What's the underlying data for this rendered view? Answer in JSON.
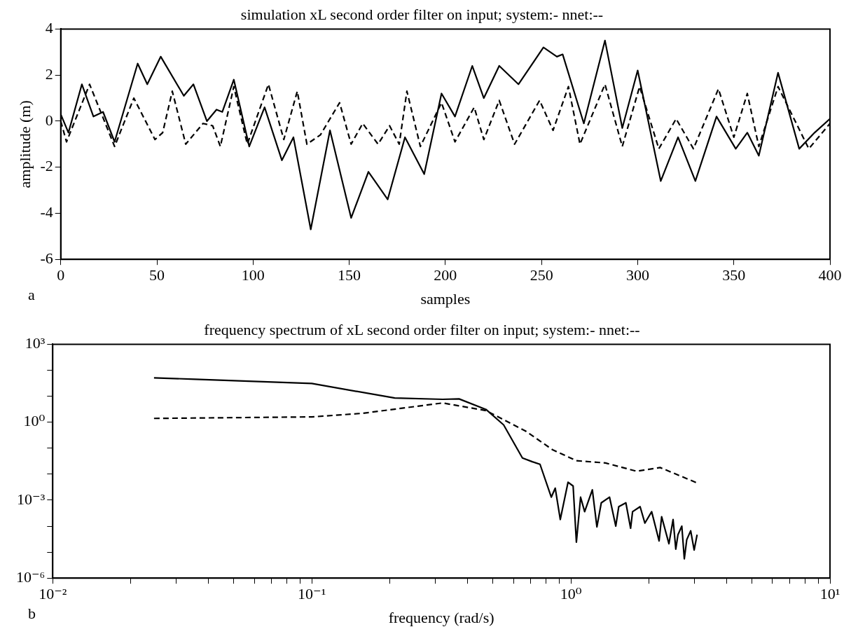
{
  "chart_data": [
    {
      "type": "line",
      "title": "simulation xL second order filter on input; system:- nnet:--",
      "xlabel": "samples",
      "ylabel": "amplitude (m)",
      "annotations": [
        "a"
      ],
      "xlim": [
        0,
        400
      ],
      "xticks": [
        0,
        50,
        100,
        150,
        200,
        250,
        300,
        350,
        400
      ],
      "ylim": [
        -6,
        4
      ],
      "yticks": [
        -6,
        -4,
        -2,
        0,
        2,
        4
      ],
      "grid": false,
      "legend": false,
      "marker": "none",
      "series": [
        {
          "color": "#000000",
          "line_style": "solid",
          "x": [
            0,
            4,
            11,
            17,
            22,
            28,
            40,
            45,
            52,
            64,
            69,
            76,
            81,
            84,
            90,
            98,
            106,
            115,
            121,
            130,
            140,
            151,
            160,
            170,
            179,
            189,
            198,
            205,
            214,
            220,
            228,
            238,
            251,
            258,
            261,
            272,
            283,
            292,
            300,
            312,
            321,
            330,
            341,
            351,
            357,
            363,
            373,
            384,
            392,
            400
          ],
          "values": [
            0.3,
            -0.5,
            1.6,
            0.2,
            0.4,
            -0.9,
            2.5,
            1.6,
            2.8,
            1.1,
            1.6,
            0.0,
            0.5,
            0.4,
            1.8,
            -1.1,
            0.6,
            -1.7,
            -0.7,
            -4.7,
            -0.4,
            -4.2,
            -2.2,
            -3.4,
            -0.7,
            -2.3,
            1.2,
            0.2,
            2.4,
            1.0,
            2.4,
            1.6,
            3.2,
            2.8,
            2.9,
            -0.1,
            3.5,
            -0.3,
            2.2,
            -2.6,
            -0.7,
            -2.6,
            0.2,
            -1.2,
            -0.5,
            -1.5,
            2.1,
            -1.2,
            -0.5,
            0.1
          ]
        },
        {
          "color": "#000000",
          "line_style": "dashed",
          "x": [
            0,
            3,
            15,
            28,
            38,
            49,
            53,
            58,
            65,
            74,
            79,
            83,
            90,
            97,
            108,
            116,
            123,
            128,
            135,
            145,
            151,
            157,
            165,
            171,
            176,
            180,
            187,
            198,
            205,
            215,
            220,
            228,
            236,
            249,
            256,
            264,
            270,
            283,
            292,
            301,
            311,
            320,
            329,
            342,
            350,
            357,
            363,
            373,
            389,
            400
          ],
          "values": [
            0.0,
            -0.9,
            1.6,
            -1.1,
            1.0,
            -0.8,
            -0.5,
            1.3,
            -1.0,
            -0.1,
            -0.2,
            -1.1,
            1.5,
            -1.0,
            1.6,
            -0.8,
            1.3,
            -1.0,
            -0.6,
            0.8,
            -1.0,
            -0.1,
            -1.0,
            -0.2,
            -1.0,
            1.3,
            -1.1,
            0.8,
            -0.9,
            0.6,
            -0.8,
            0.9,
            -1.0,
            0.9,
            -0.4,
            1.5,
            -1.0,
            1.6,
            -1.1,
            1.5,
            -1.2,
            0.1,
            -1.2,
            1.4,
            -0.7,
            1.2,
            -1.1,
            1.5,
            -1.2,
            -0.1
          ]
        }
      ]
    },
    {
      "type": "line",
      "title": "frequency spectrum of xL second order filter on input; system:- nnet:--",
      "xlabel": "frequency (rad/s)",
      "annotations": [
        "b"
      ],
      "log": "xy",
      "xlim": [
        0.01,
        10
      ],
      "xticks": [
        {
          "value": 0.01,
          "label": "10⁻²"
        },
        {
          "value": 0.02,
          "label": null
        },
        {
          "value": 0.03,
          "label": null
        },
        {
          "value": 0.04,
          "label": null
        },
        {
          "value": 0.05,
          "label": null
        },
        {
          "value": 0.06,
          "label": null
        },
        {
          "value": 0.07,
          "label": null
        },
        {
          "value": 0.08,
          "label": null
        },
        {
          "value": 0.09,
          "label": null
        },
        {
          "value": 0.1,
          "label": "10⁻¹"
        },
        {
          "value": 0.2,
          "label": null
        },
        {
          "value": 0.3,
          "label": null
        },
        {
          "value": 0.4,
          "label": null
        },
        {
          "value": 0.5,
          "label": null
        },
        {
          "value": 0.6,
          "label": null
        },
        {
          "value": 0.7,
          "label": null
        },
        {
          "value": 0.8,
          "label": null
        },
        {
          "value": 0.9,
          "label": null
        },
        {
          "value": 1,
          "label": "10⁰"
        },
        {
          "value": 2,
          "label": null
        },
        {
          "value": 3,
          "label": null
        },
        {
          "value": 4,
          "label": null
        },
        {
          "value": 5,
          "label": null
        },
        {
          "value": 6,
          "label": null
        },
        {
          "value": 7,
          "label": null
        },
        {
          "value": 8,
          "label": null
        },
        {
          "value": 9,
          "label": null
        },
        {
          "value": 10,
          "label": "10¹"
        }
      ],
      "ylim": [
        1e-06,
        1000
      ],
      "yticks": [
        {
          "value": 1e-06,
          "label": "10⁻⁶"
        },
        {
          "value": 1e-05,
          "label": null
        },
        {
          "value": 0.0001,
          "label": null
        },
        {
          "value": 0.001,
          "label": "10⁻³"
        },
        {
          "value": 0.01,
          "label": null
        },
        {
          "value": 0.1,
          "label": null
        },
        {
          "value": 1,
          "label": "10⁰"
        },
        {
          "value": 10,
          "label": null
        },
        {
          "value": 100,
          "label": null
        },
        {
          "value": 1000,
          "label": "10³"
        }
      ],
      "grid": false,
      "legend": false,
      "marker": "none",
      "series": [
        {
          "color": "#000000",
          "line_style": "solid",
          "x": [
            0.0246,
            0.0354,
            0.1,
            0.209,
            0.32,
            0.37,
            0.47,
            0.55,
            0.65,
            0.71,
            0.76,
            0.84,
            0.87,
            0.91,
            0.975,
            1.02,
            1.05,
            1.09,
            1.13,
            1.21,
            1.26,
            1.31,
            1.41,
            1.49,
            1.53,
            1.63,
            1.7,
            1.73,
            1.85,
            1.93,
            2.05,
            2.19,
            2.24,
            2.39,
            2.48,
            2.54,
            2.59,
            2.68,
            2.74,
            2.8,
            2.9,
            2.99,
            3.07
          ],
          "values": [
            51,
            45,
            31,
            8.5,
            7.6,
            7.9,
            3.1,
            0.79,
            0.042,
            0.03,
            0.024,
            0.0013,
            0.0029,
            0.00018,
            0.0049,
            0.0035,
            2.4e-05,
            0.0013,
            0.00036,
            0.0025,
            9.3e-05,
            0.00079,
            0.0013,
            0.0001,
            0.00056,
            0.00079,
            8.3e-05,
            0.00036,
            0.00056,
            0.00013,
            0.00036,
            2.7e-05,
            0.00023,
            2.1e-05,
            0.00018,
            1.3e-05,
            4.7e-05,
            0.0001,
            5.5e-06,
            3e-05,
            6.6e-05,
            1.2e-05,
            4.7e-05
          ]
        },
        {
          "color": "#000000",
          "line_style": "dashed",
          "x": [
            0.0246,
            0.1,
            0.157,
            0.32,
            0.47,
            0.67,
            0.85,
            1.05,
            1.36,
            1.79,
            2.21,
            3.07
          ],
          "values": [
            1.4,
            1.6,
            2.2,
            5.5,
            2.8,
            0.45,
            0.087,
            0.033,
            0.027,
            0.013,
            0.018,
            0.0046
          ]
        }
      ]
    }
  ]
}
